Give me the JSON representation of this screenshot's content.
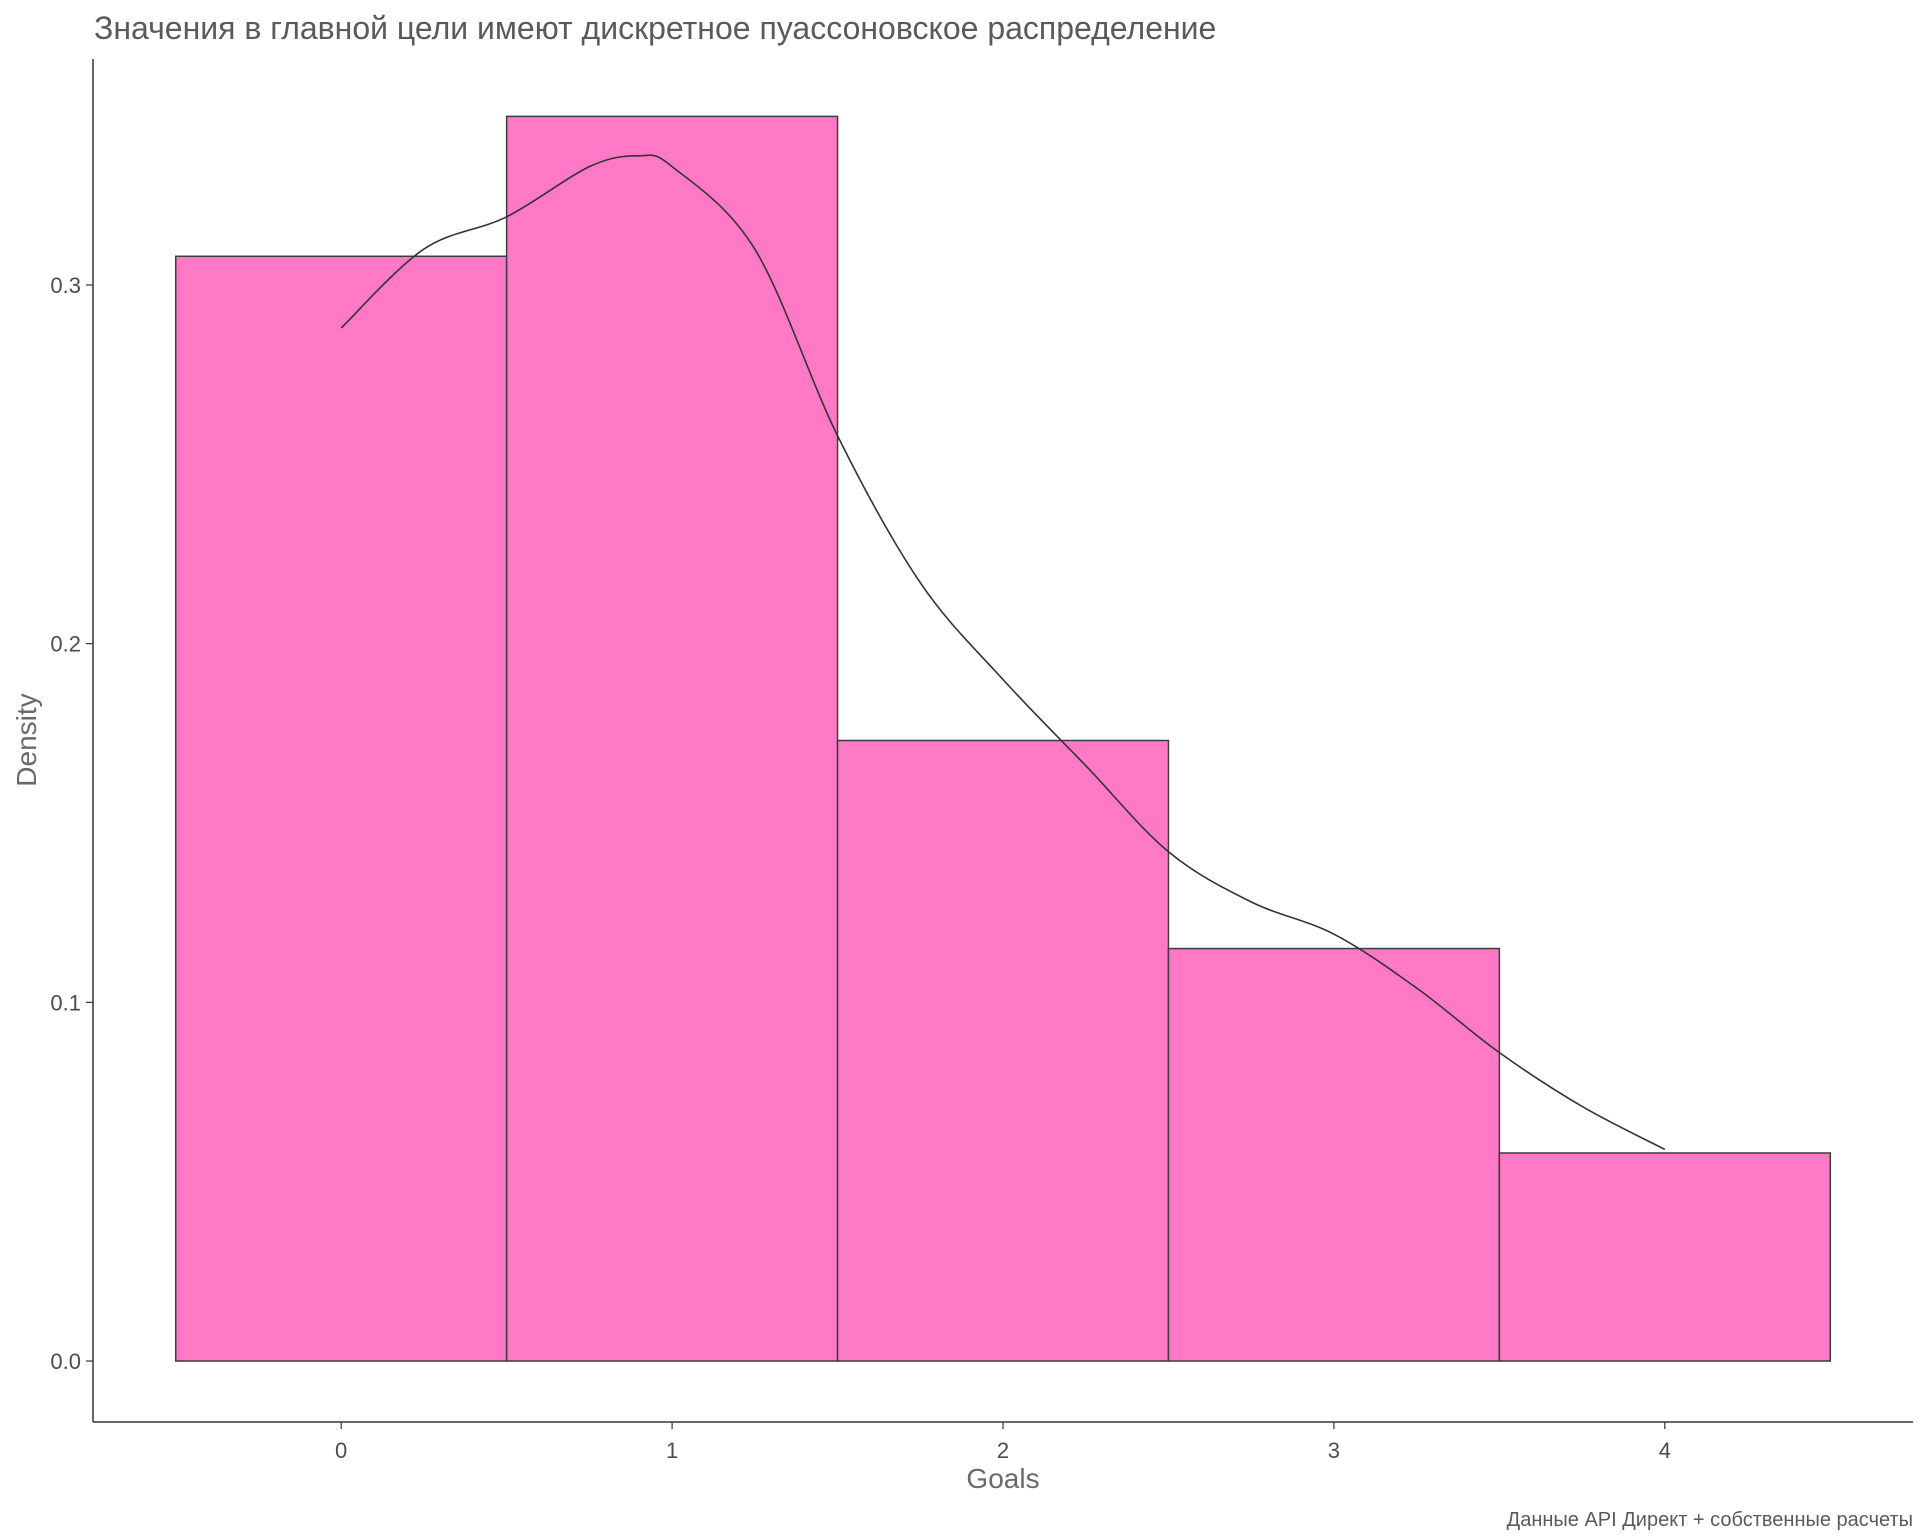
{
  "chart_data": {
    "type": "bar",
    "title": "Значения в главной цели имеют дискретное пуассоновское распределение",
    "xlabel": "Goals",
    "ylabel": "Density",
    "caption": "Данные API Директ + собственные расчеты",
    "categories": [
      "0",
      "1",
      "2",
      "3",
      "4"
    ],
    "x": [
      0,
      1,
      2,
      3,
      4
    ],
    "values": [
      0.308,
      0.347,
      0.173,
      0.115,
      0.058
    ],
    "density_curve": {
      "x": [
        0,
        0.25,
        0.5,
        0.75,
        0.9,
        1.0,
        1.25,
        1.5,
        1.75,
        2.0,
        2.25,
        2.5,
        2.75,
        3.0,
        3.25,
        3.5,
        3.75,
        4.0
      ],
      "y": [
        0.288,
        0.31,
        0.319,
        0.333,
        0.336,
        0.333,
        0.31,
        0.258,
        0.217,
        0.19,
        0.166,
        0.142,
        0.128,
        0.119,
        0.104,
        0.086,
        0.071,
        0.059
      ]
    },
    "xlim": [
      -0.75,
      4.75
    ],
    "ylim": [
      -0.017,
      0.363
    ],
    "xticks": [
      0,
      1,
      2,
      3,
      4
    ],
    "yticks": [
      0.0,
      0.1,
      0.2,
      0.3
    ],
    "ytick_labels": [
      "0.0",
      "0.1",
      "0.2",
      "0.3"
    ],
    "grid": false,
    "bar_fill": "#ff79c6",
    "bar_stroke": "#3d3d3d",
    "curve_color": "#333333",
    "axis_color": "#333333"
  }
}
